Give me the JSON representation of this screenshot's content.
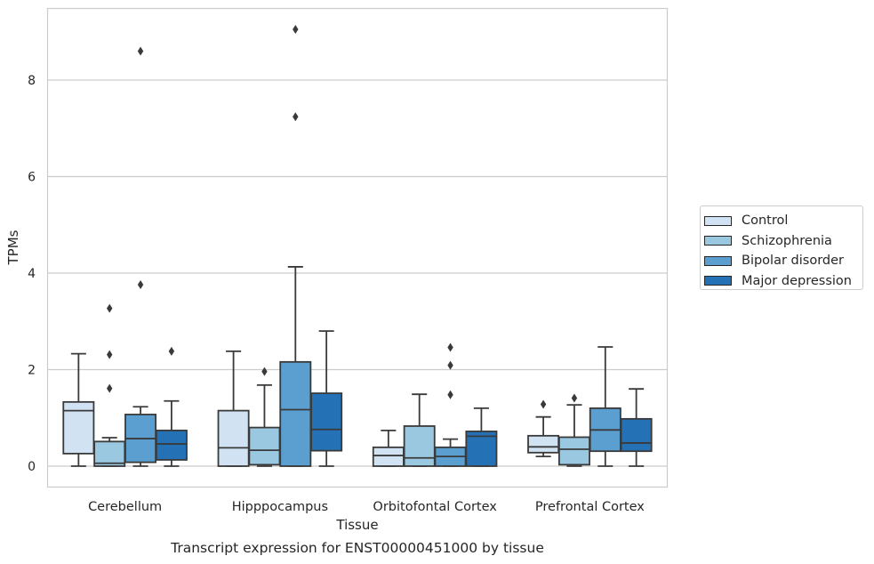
{
  "chart_data": {
    "type": "boxplot",
    "title": "",
    "xlabel": "Tissue",
    "ylabel": "TPMs",
    "footer": "Transcript expression for ENST00000451000 by tissue",
    "ylim": [
      -0.45,
      9.6
    ],
    "yticks": [
      0,
      2,
      4,
      6,
      8
    ],
    "grid": "horizontal",
    "legend_position": "right",
    "categories": [
      "Cerebellum",
      "Hipppocampus",
      "Orbitofontal Cortex",
      "Prefrontal Cortex"
    ],
    "series": [
      {
        "name": "Control",
        "color": "#d1e2f2",
        "boxes": [
          {
            "whislo": 0,
            "q1": 0.26,
            "med": 1.15,
            "q3": 1.33,
            "whishi": 2.33,
            "fliers": []
          },
          {
            "whislo": 0,
            "q1": 0,
            "med": 0.38,
            "q3": 1.15,
            "whishi": 2.38,
            "fliers": []
          },
          {
            "whislo": 0,
            "q1": 0,
            "med": 0.22,
            "q3": 0.39,
            "whishi": 0.74,
            "fliers": []
          },
          {
            "whislo": 0.2,
            "q1": 0.28,
            "med": 0.4,
            "q3": 0.63,
            "whishi": 1.02,
            "fliers": [
              1.28
            ]
          }
        ]
      },
      {
        "name": "Schizophrenia",
        "color": "#9ac8e0",
        "boxes": [
          {
            "whislo": 0,
            "q1": 0,
            "med": 0.06,
            "q3": 0.51,
            "whishi": 0.59,
            "fliers": [
              1.61,
              2.31,
              3.27
            ]
          },
          {
            "whislo": 0,
            "q1": 0.03,
            "med": 0.33,
            "q3": 0.8,
            "whishi": 1.68,
            "fliers": [
              1.96
            ]
          },
          {
            "whislo": 0,
            "q1": 0,
            "med": 0.17,
            "q3": 0.83,
            "whishi": 1.49,
            "fliers": []
          },
          {
            "whislo": 0,
            "q1": 0.03,
            "med": 0.35,
            "q3": 0.6,
            "whishi": 1.27,
            "fliers": [
              1.41
            ]
          }
        ]
      },
      {
        "name": "Bipolar disorder",
        "color": "#5a9fcf",
        "boxes": [
          {
            "whislo": 0,
            "q1": 0.08,
            "med": 0.57,
            "q3": 1.07,
            "whishi": 1.23,
            "fliers": [
              3.76,
              8.6
            ]
          },
          {
            "whislo": 0,
            "q1": 0,
            "med": 1.17,
            "q3": 2.16,
            "whishi": 4.13,
            "fliers": [
              7.24,
              9.05
            ]
          },
          {
            "whislo": 0,
            "q1": 0,
            "med": 0.2,
            "q3": 0.39,
            "whishi": 0.56,
            "fliers": [
              1.48,
              2.09,
              2.46
            ]
          },
          {
            "whislo": 0,
            "q1": 0.31,
            "med": 0.75,
            "q3": 1.2,
            "whishi": 2.47,
            "fliers": []
          }
        ]
      },
      {
        "name": "Major depression",
        "color": "#2471b5",
        "boxes": [
          {
            "whislo": 0,
            "q1": 0.13,
            "med": 0.46,
            "q3": 0.74,
            "whishi": 1.35,
            "fliers": [
              2.38
            ]
          },
          {
            "whislo": 0,
            "q1": 0.32,
            "med": 0.76,
            "q3": 1.51,
            "whishi": 2.8,
            "fliers": []
          },
          {
            "whislo": 0,
            "q1": 0,
            "med": 0.62,
            "q3": 0.72,
            "whishi": 1.2,
            "fliers": []
          },
          {
            "whislo": 0,
            "q1": 0.31,
            "med": 0.48,
            "q3": 0.98,
            "whishi": 1.6,
            "fliers": []
          }
        ]
      }
    ]
  }
}
